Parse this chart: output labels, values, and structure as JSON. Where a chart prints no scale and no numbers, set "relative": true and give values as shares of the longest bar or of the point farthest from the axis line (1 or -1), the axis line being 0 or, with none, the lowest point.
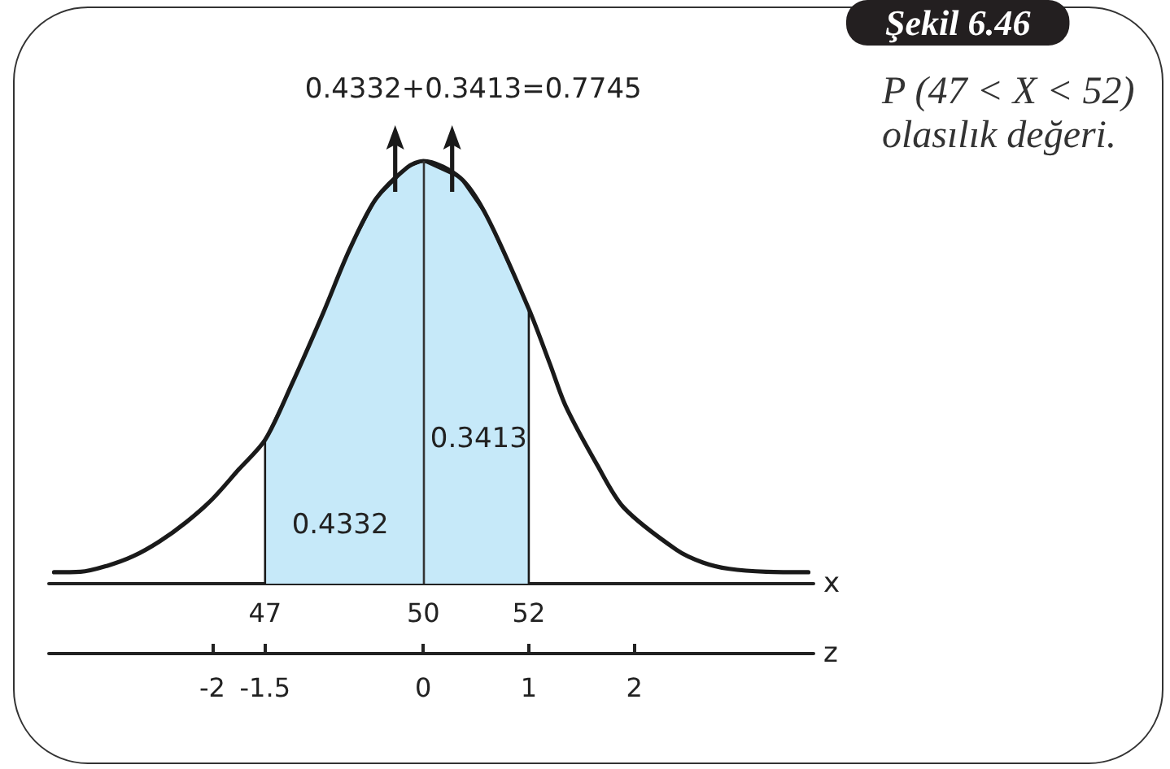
{
  "chart_data": {
    "type": "line",
    "title": "Şekil 6.46",
    "subtitle": "P (47 < X < 52) olasılık değeri.",
    "xlabel": "x",
    "x2label": "z",
    "relative": true,
    "xlim": [
      42.9,
      57.4
    ],
    "xticks": [
      47,
      50,
      52
    ],
    "x2lim": [
      -3.55,
      3.7
    ],
    "x2ticks": [
      -2,
      -1.5,
      0,
      1,
      2
    ],
    "series": [
      {
        "type": "area",
        "color": "#c6e9f9",
        "x": [
          47,
          47,
          47.5,
          48.1,
          48.6,
          49.1,
          49.7,
          50,
          50.7,
          51.2,
          52,
          52
        ],
        "values": [
          0,
          0.34,
          0.47,
          0.64,
          0.79,
          0.91,
          0.985,
          1,
          0.96,
          0.87,
          0.65,
          0
        ]
      },
      {
        "color": "#1a1a1a",
        "x": [
          43,
          43.5,
          44,
          44.5,
          45,
          45.5,
          46,
          46.5,
          47,
          47.5,
          48.1,
          48.6,
          49.1,
          49.7,
          50,
          50.7,
          51.2,
          52,
          52.4,
          52.7,
          53.3,
          53.8,
          54.8,
          55.3,
          55.8,
          56.5,
          57.3
        ],
        "values": [
          0.027,
          0.028,
          0.042,
          0.065,
          0.1,
          0.145,
          0.2,
          0.27,
          0.34,
          0.47,
          0.64,
          0.79,
          0.91,
          0.985,
          1,
          0.96,
          0.87,
          0.65,
          0.52,
          0.42,
          0.28,
          0.18,
          0.08,
          0.05,
          0.035,
          0.028,
          0.027
        ]
      }
    ],
    "ref_lines": [
      {
        "axis": "x",
        "value": 50,
        "color": "#333333"
      }
    ],
    "annotations": [
      "0.4332+0.3413=0.7745",
      "0.4332",
      "0.3413"
    ]
  }
}
